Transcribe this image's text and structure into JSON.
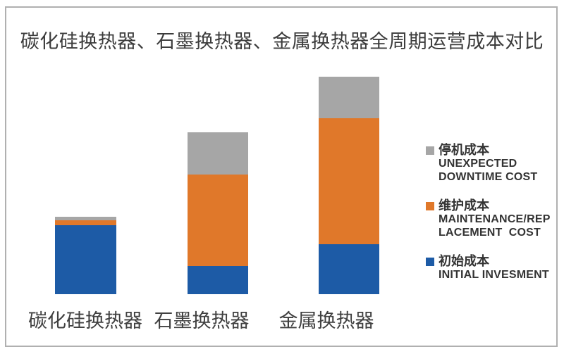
{
  "title": "碳化硅换热器、石墨换热器、金属换热器全周期运营成本对比",
  "chart_data": {
    "type": "bar",
    "stacked": true,
    "title": "碳化硅换热器、石墨换热器、金属换热器全周期运营成本对比",
    "categories": [
      "碳化硅换热器",
      "石墨换热器",
      "金属换热器"
    ],
    "series": [
      {
        "key": "initial",
        "name_zh": "初始成本",
        "name_en": "INITIAL INVESMENT",
        "color": "#1D5BA6",
        "values": [
          31.7,
          12.9,
          23.0
        ]
      },
      {
        "key": "maintenance",
        "name_zh": "维护成本",
        "name_en": "MAINTENANCE/REPLACEMENT COST",
        "color": "#E0782A",
        "values": [
          2.3,
          42.1,
          57.9
        ]
      },
      {
        "key": "downtime",
        "name_zh": "停机成本",
        "name_en": "UNEXPECTED DOWNTIME COST",
        "color": "#A6A6A6",
        "values": [
          1.6,
          19.4,
          19.1
        ]
      }
    ],
    "xlabel": "",
    "ylabel": "",
    "ylim": [
      0,
      100
    ],
    "units": "relative cost (tallest stack = 100)",
    "axes_hidden": true,
    "grid": false,
    "legend_position": "right"
  },
  "legend": {
    "items": [
      {
        "series_key": "downtime",
        "label_zh": "停机成本",
        "label_en_lines": [
          "UNEXPECTED",
          "DOWNTIME COST"
        ],
        "color": "#A6A6A6"
      },
      {
        "series_key": "maintenance",
        "label_zh": "维护成本",
        "label_en_lines": [
          "MAINTENANCE/REP",
          "LACEMENT  COST"
        ],
        "color": "#E0782A"
      },
      {
        "series_key": "initial",
        "label_zh": "初始成本",
        "label_en_lines": [
          "INITIAL INVESMENT"
        ],
        "color": "#1D5BA6"
      }
    ]
  },
  "frame": {
    "border_color": "#B0B0B0"
  }
}
